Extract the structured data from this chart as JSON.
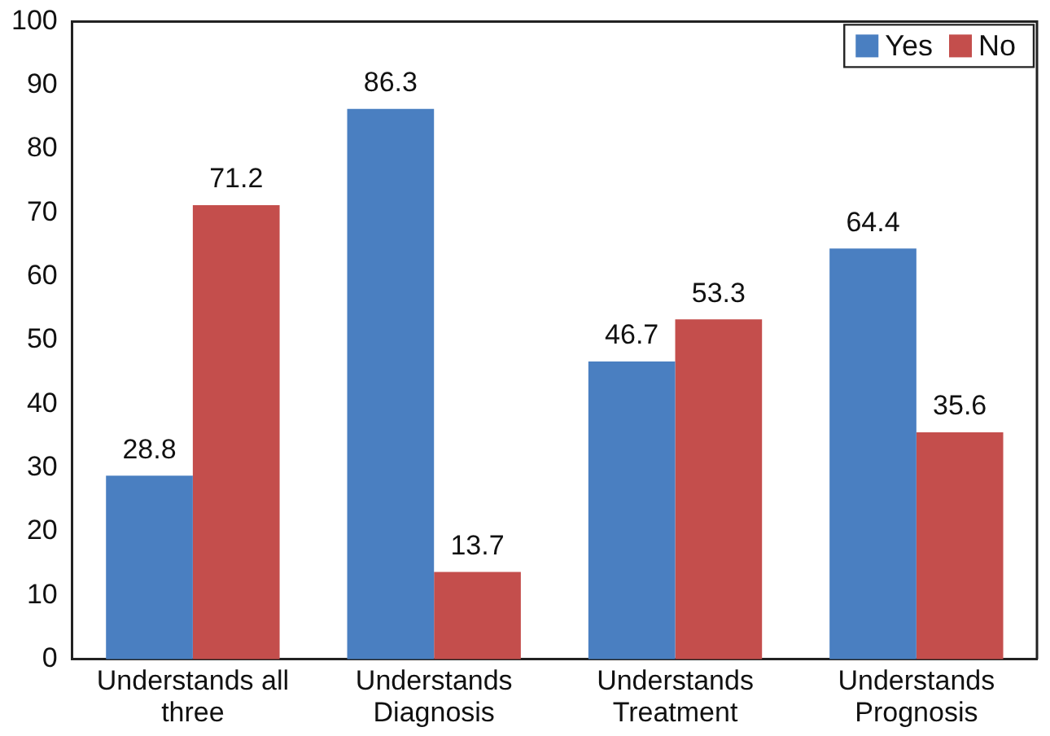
{
  "chart_data": {
    "type": "bar",
    "categories": [
      "Understands all three",
      "Understands Diagnosis",
      "Understands Treatment",
      "Understands Prognosis"
    ],
    "series": [
      {
        "name": "Yes",
        "color": "#4a7fc1",
        "values": [
          28.8,
          86.3,
          46.7,
          64.4
        ]
      },
      {
        "name": "No",
        "color": "#c44e4c",
        "values": [
          71.2,
          13.7,
          53.3,
          35.6
        ]
      }
    ],
    "ylim": [
      0,
      100
    ],
    "yticks": [
      0,
      10,
      20,
      30,
      40,
      50,
      60,
      70,
      80,
      90,
      100
    ],
    "grid": false,
    "legend": "top right",
    "data_labels": true
  }
}
